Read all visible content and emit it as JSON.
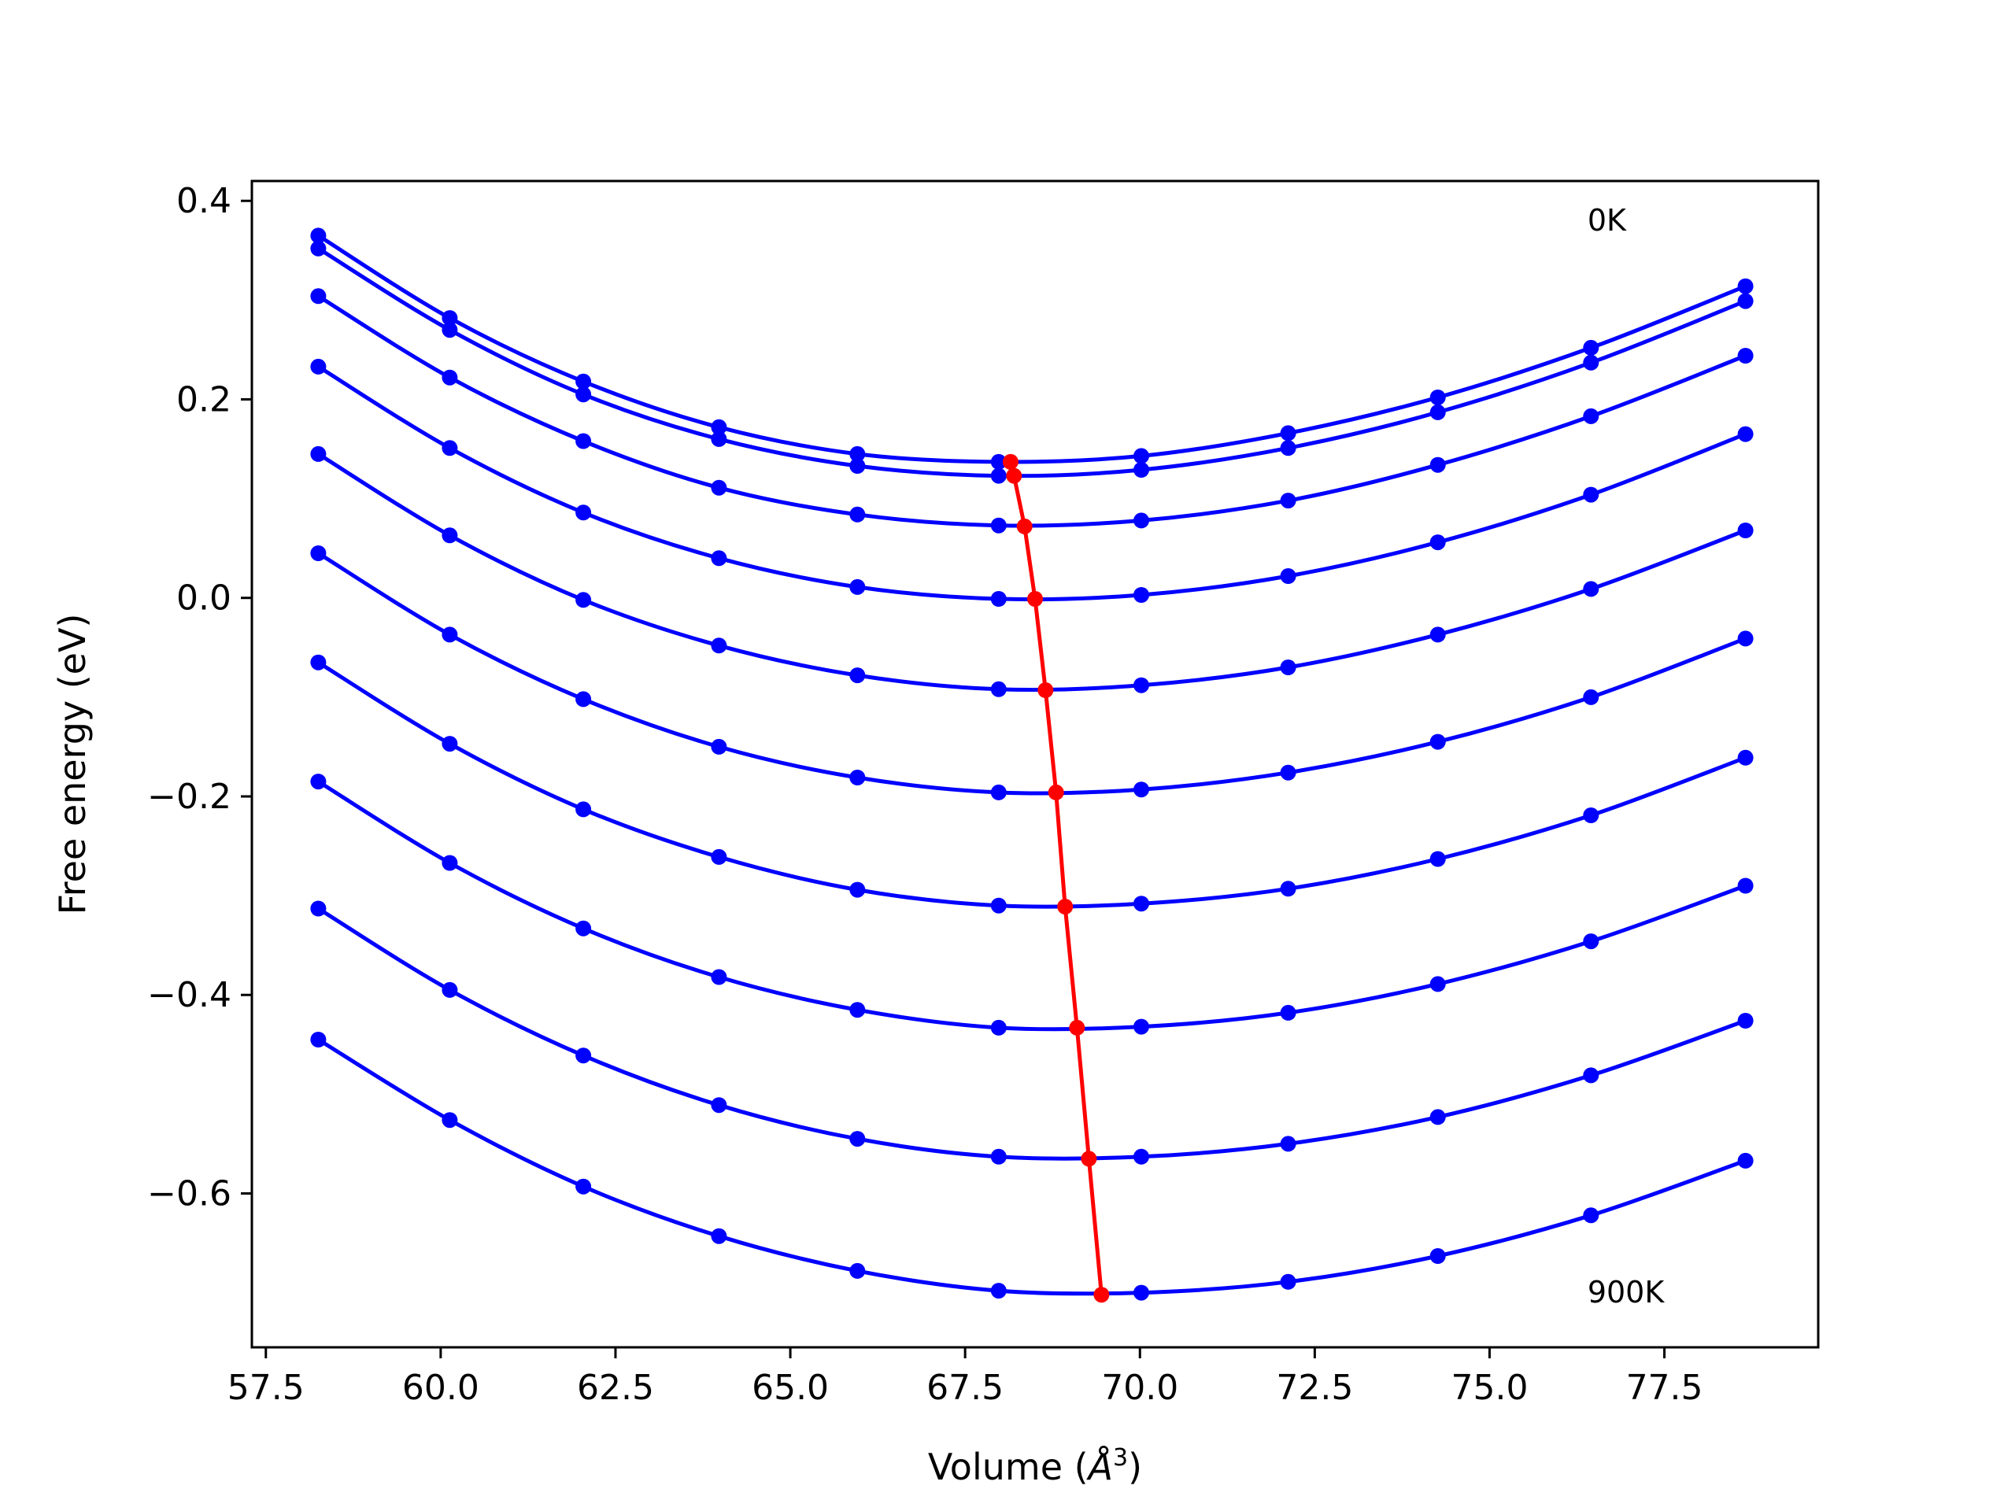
{
  "chart_data": {
    "type": "line",
    "title": "",
    "xlabel": "Volume (",
    "xlabel_unit": "Å",
    "xlabel_exp": "3",
    "xlabel_close": ")",
    "ylabel": "Free energy (eV)",
    "xlim": [
      57.3,
      79.7
    ],
    "ylim": [
      -0.755,
      0.42
    ],
    "xticks": [
      57.5,
      60.0,
      62.5,
      65.0,
      67.5,
      70.0,
      72.5,
      75.0,
      77.5
    ],
    "xtick_labels": [
      "57.5",
      "60.0",
      "62.5",
      "65.0",
      "67.5",
      "70.0",
      "72.5",
      "75.0",
      "77.5"
    ],
    "yticks": [
      0.4,
      0.2,
      0.0,
      -0.2,
      -0.4,
      -0.6
    ],
    "ytick_labels": [
      "0.4",
      "0.2",
      "0.0",
      "−0.2",
      "−0.4",
      "−0.6"
    ],
    "grid": false,
    "legend": "none",
    "colors": {
      "curves": "#0000ff",
      "minima": "#ff0000"
    },
    "x": [
      58.25,
      60.13,
      62.04,
      63.98,
      65.96,
      67.98,
      70.02,
      72.12,
      74.26,
      76.45,
      78.66
    ],
    "series": [
      {
        "values": [
          0.365,
          0.282,
          0.218,
          0.172,
          0.145,
          0.137,
          0.143,
          0.166,
          0.202,
          0.252,
          0.314
        ]
      },
      {
        "values": [
          0.352,
          0.27,
          0.205,
          0.16,
          0.133,
          0.123,
          0.129,
          0.151,
          0.187,
          0.237,
          0.299
        ]
      },
      {
        "values": [
          0.304,
          0.222,
          0.158,
          0.111,
          0.084,
          0.073,
          0.078,
          0.098,
          0.134,
          0.183,
          0.244
        ]
      },
      {
        "values": [
          0.233,
          0.151,
          0.086,
          0.04,
          0.011,
          -0.001,
          0.003,
          0.022,
          0.056,
          0.104,
          0.165
        ]
      },
      {
        "values": [
          0.145,
          0.063,
          -0.002,
          -0.048,
          -0.078,
          -0.092,
          -0.088,
          -0.07,
          -0.037,
          0.009,
          0.068
        ]
      },
      {
        "values": [
          0.045,
          -0.037,
          -0.102,
          -0.15,
          -0.181,
          -0.196,
          -0.193,
          -0.176,
          -0.145,
          -0.1,
          -0.041
        ]
      },
      {
        "values": [
          -0.065,
          -0.147,
          -0.213,
          -0.261,
          -0.294,
          -0.31,
          -0.308,
          -0.293,
          -0.263,
          -0.219,
          -0.161
        ]
      },
      {
        "values": [
          -0.185,
          -0.267,
          -0.333,
          -0.382,
          -0.415,
          -0.433,
          -0.432,
          -0.418,
          -0.389,
          -0.346,
          -0.29
        ]
      },
      {
        "values": [
          -0.313,
          -0.395,
          -0.461,
          -0.511,
          -0.545,
          -0.563,
          -0.563,
          -0.55,
          -0.523,
          -0.481,
          -0.426
        ]
      },
      {
        "values": [
          -0.445,
          -0.526,
          -0.593,
          -0.643,
          -0.678,
          -0.698,
          -0.7,
          -0.689,
          -0.663,
          -0.622,
          -0.567
        ]
      }
    ],
    "minima": {
      "x": [
        68.15,
        68.2,
        68.35,
        68.5,
        68.65,
        68.8,
        68.93,
        69.1,
        69.27,
        69.45
      ],
      "y": [
        0.137,
        0.123,
        0.072,
        -0.001,
        -0.093,
        -0.196,
        -0.311,
        -0.433,
        -0.565,
        -0.702
      ]
    },
    "annotations": [
      {
        "text": "0K",
        "x": 76.4,
        "y": 0.37
      },
      {
        "text": "900K",
        "x": 76.4,
        "y": -0.71
      }
    ]
  }
}
